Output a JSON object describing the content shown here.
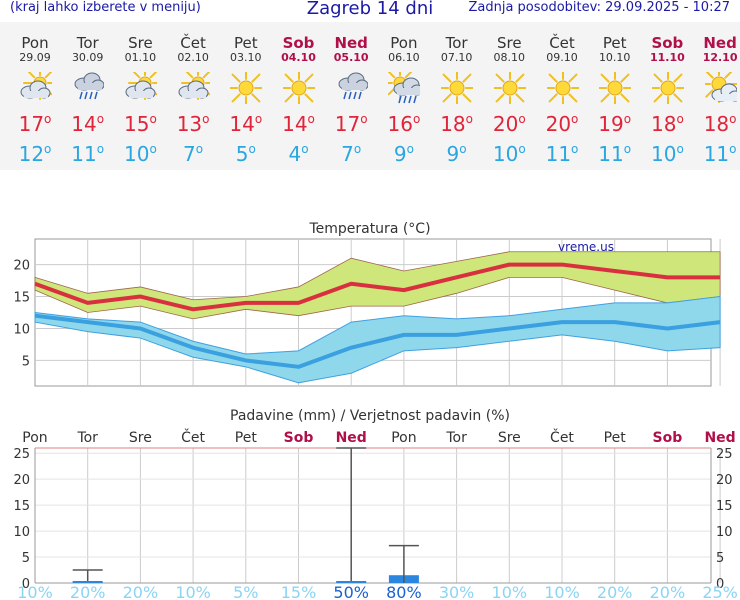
{
  "header": {
    "hint": "(kraj lahko izberete v meniju)",
    "title": "Zagreb 14 dni",
    "updated": "Zadnja posodobitev: 29.09.2025 - 10:27"
  },
  "days": [
    {
      "name": "Pon",
      "date": "29.09",
      "weekend": false,
      "icon": "partly-cloudy-icon",
      "tmax": "17",
      "tmin": "12"
    },
    {
      "name": "Tor",
      "date": "30.09",
      "weekend": false,
      "icon": "rain-cloud-icon",
      "tmax": "14",
      "tmin": "11"
    },
    {
      "name": "Sre",
      "date": "01.10",
      "weekend": false,
      "icon": "partly-cloudy-icon",
      "tmax": "15",
      "tmin": "10"
    },
    {
      "name": "Čet",
      "date": "02.10",
      "weekend": false,
      "icon": "partly-cloudy-icon",
      "tmax": "13",
      "tmin": "7"
    },
    {
      "name": "Pet",
      "date": "03.10",
      "weekend": false,
      "icon": "sun-icon",
      "tmax": "14",
      "tmin": "5"
    },
    {
      "name": "Sob",
      "date": "04.10",
      "weekend": true,
      "icon": "sun-icon",
      "tmax": "14",
      "tmin": "4"
    },
    {
      "name": "Ned",
      "date": "05.10",
      "weekend": true,
      "icon": "rain-cloud-icon",
      "tmax": "17",
      "tmin": "7"
    },
    {
      "name": "Pon",
      "date": "06.10",
      "weekend": false,
      "icon": "sun-rain-icon",
      "tmax": "16",
      "tmin": "9"
    },
    {
      "name": "Tor",
      "date": "07.10",
      "weekend": false,
      "icon": "sun-icon",
      "tmax": "18",
      "tmin": "9"
    },
    {
      "name": "Sre",
      "date": "08.10",
      "weekend": false,
      "icon": "sun-icon",
      "tmax": "20",
      "tmin": "10"
    },
    {
      "name": "Čet",
      "date": "09.10",
      "weekend": false,
      "icon": "sun-icon",
      "tmax": "20",
      "tmin": "11"
    },
    {
      "name": "Pet",
      "date": "10.10",
      "weekend": false,
      "icon": "sun-icon",
      "tmax": "19",
      "tmin": "11"
    },
    {
      "name": "Sob",
      "date": "11.10",
      "weekend": true,
      "icon": "sun-icon",
      "tmax": "18",
      "tmin": "10"
    },
    {
      "name": "Ned",
      "date": "12.10",
      "weekend": true,
      "icon": "sun-cloud-icon",
      "tmax": "18",
      "tmin": "11"
    }
  ],
  "degree_symbol": "o",
  "colors": {
    "max_line": "#d93040",
    "max_band": "#cfe67a",
    "max_band_edge": "#a0644a",
    "min_line": "#3aa0e0",
    "min_band": "#8fd8ec",
    "min_band_edge": "#40a0e0",
    "bar": "#2b86e0",
    "grid": "#cccccc",
    "weekend": "#b0104a"
  },
  "chart_data": [
    {
      "type": "line",
      "title": "Temperatura (°C)",
      "watermark": "vreme.us",
      "categories": [
        "Pon",
        "Tor",
        "Sre",
        "Čet",
        "Pet",
        "Sob",
        "Ned",
        "Pon",
        "Tor",
        "Sre",
        "Čet",
        "Pet",
        "Sob",
        "Ned"
      ],
      "ylim": [
        1,
        24
      ],
      "yticks": [
        5,
        10,
        15,
        20
      ],
      "series": [
        {
          "values": [
            17,
            14,
            15,
            13,
            14,
            14,
            17,
            16,
            18,
            20,
            20,
            19,
            18,
            18
          ]
        },
        {
          "values": [
            12,
            11,
            10,
            7,
            5,
            4,
            7,
            9,
            9,
            10,
            11,
            11,
            10,
            11
          ]
        }
      ],
      "bands": [
        {
          "upper": [
            18,
            15.5,
            16.5,
            14.5,
            15,
            16.5,
            21,
            19,
            20.5,
            22,
            22,
            22,
            22,
            22
          ],
          "lower": [
            16,
            12.5,
            13.5,
            11.5,
            13,
            12,
            13.5,
            13.5,
            15.5,
            18,
            18,
            16,
            14,
            15
          ]
        },
        {
          "upper": [
            12.5,
            11.5,
            11,
            8,
            6,
            6.5,
            11,
            12,
            11.5,
            12,
            13,
            14,
            14,
            15
          ],
          "lower": [
            11,
            9.5,
            8.5,
            5.5,
            4,
            1.5,
            3,
            6.5,
            7,
            8,
            9,
            8,
            6.5,
            7
          ]
        }
      ],
      "grid": true
    },
    {
      "type": "bar",
      "title": "Padavine (mm) / Verjetnost padavin (%)",
      "categories": [
        "Pon",
        "Tor",
        "Sre",
        "Čet",
        "Pet",
        "Sob",
        "Ned",
        "Pon",
        "Tor",
        "Sre",
        "Čet",
        "Pet",
        "Sob",
        "Ned"
      ],
      "ylim": [
        0,
        26
      ],
      "yticks": [
        0,
        5,
        10,
        15,
        20,
        25
      ],
      "values": [
        0,
        0.2,
        0,
        0,
        0,
        0,
        0.2,
        1.5,
        0,
        0,
        0,
        0,
        0,
        0
      ],
      "error_max": [
        0,
        2.5,
        0,
        0,
        0,
        0,
        26,
        7.2,
        0,
        0,
        0,
        0,
        0,
        0
      ],
      "probability": [
        "10%",
        "20%",
        "20%",
        "10%",
        "5%",
        "15%",
        "50%",
        "80%",
        "30%",
        "10%",
        "10%",
        "20%",
        "20%",
        "25%"
      ],
      "grid": true
    }
  ]
}
